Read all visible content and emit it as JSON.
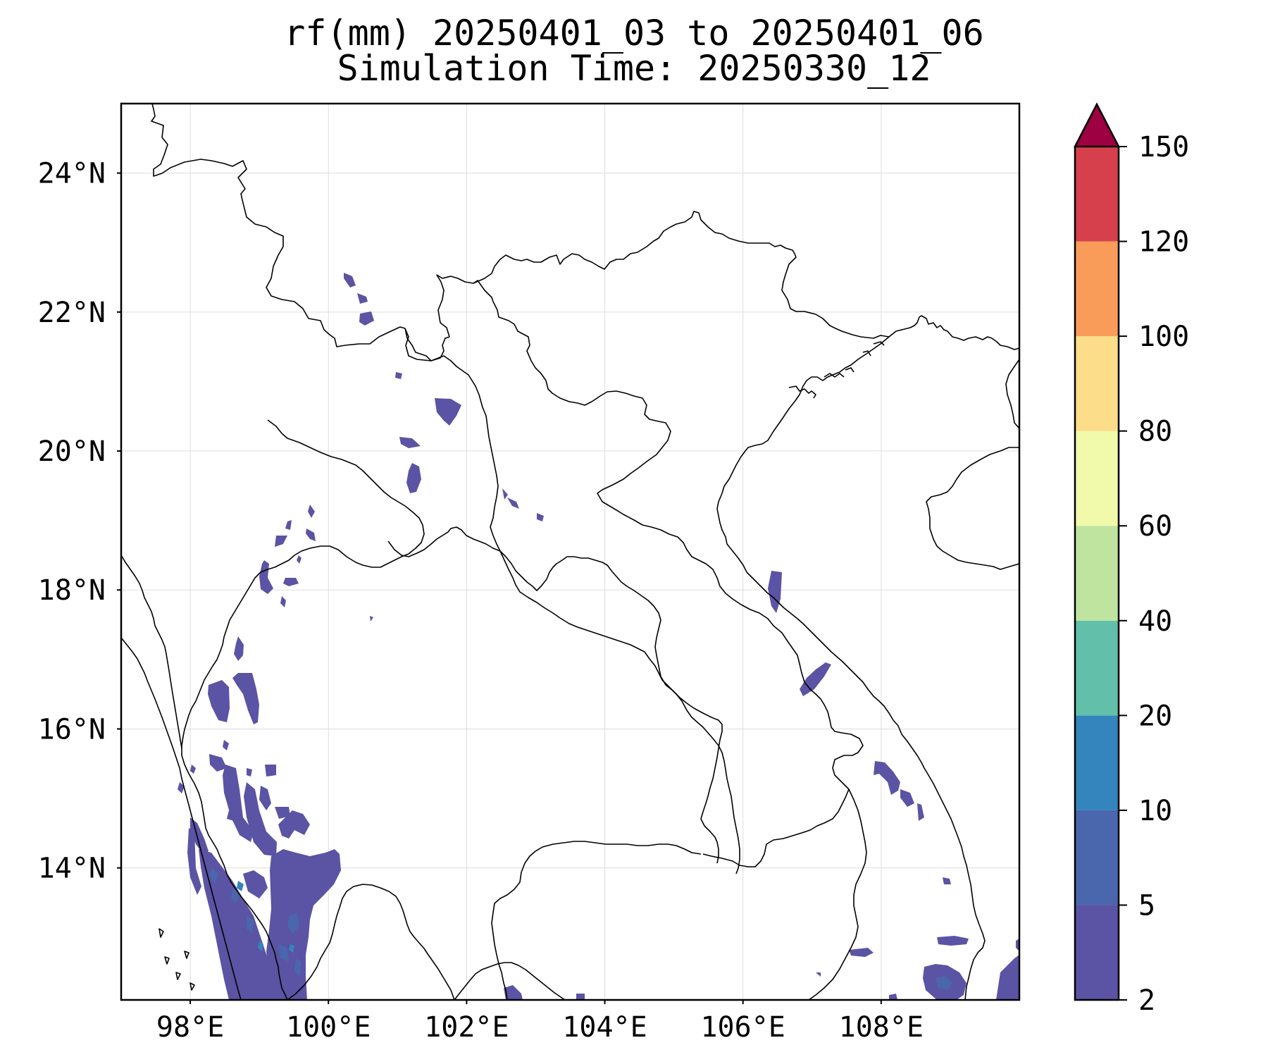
{
  "title": {
    "line1": "rf(mm) 20250401_03 to 20250401_06",
    "line2": "Simulation Time: 20250330_12"
  },
  "map": {
    "lon_range": [
      97,
      110
    ],
    "lat_range": [
      12.1,
      25
    ],
    "lon_ticks": [
      "98°E",
      "100°E",
      "102°E",
      "104°E",
      "106°E",
      "108°E"
    ],
    "lat_ticks": [
      "24°N",
      "22°N",
      "20°N",
      "18°N",
      "16°N",
      "14°N"
    ],
    "gridlines": true
  },
  "colorbar": {
    "orientation": "vertical",
    "position": "right",
    "extend": "max",
    "levels": [
      "2",
      "5",
      "10",
      "20",
      "40",
      "60",
      "80",
      "100",
      "120",
      "150"
    ],
    "colors": [
      "#5b53a4",
      "#4a66ad",
      "#3484bd",
      "#61bfaa",
      "#bfe4a0",
      "#f1f9ab",
      "#fbdd8a",
      "#f99c5a",
      "#d6404d"
    ],
    "extend_color": "#9e0142"
  }
}
